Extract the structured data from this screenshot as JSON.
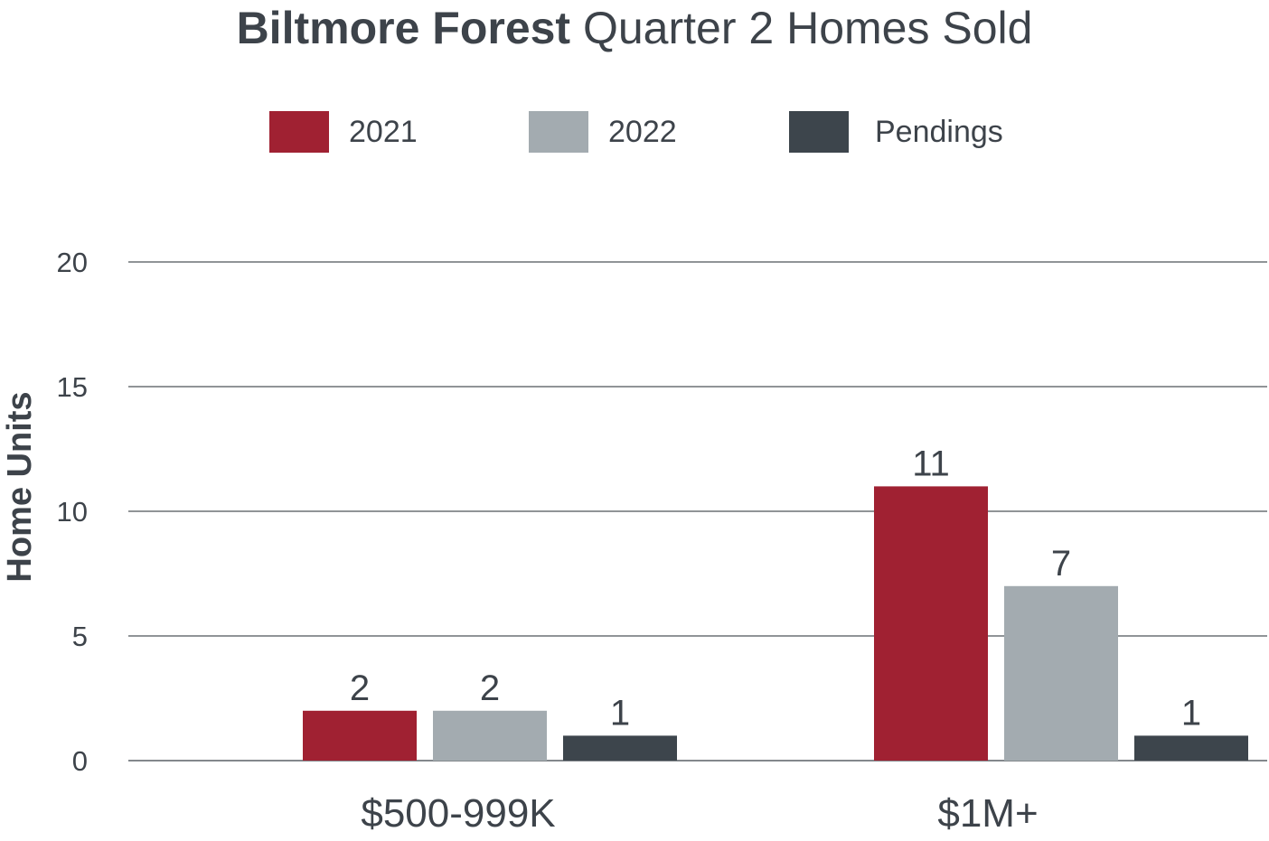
{
  "chart_data": {
    "type": "bar",
    "title_bold": "Biltmore Forest",
    "title_rest": " Quarter 2 Homes Sold",
    "xlabel": "",
    "ylabel": "Home Units",
    "ylim": [
      0,
      20
    ],
    "yticks": [
      "0",
      "5",
      "10",
      "15",
      "20"
    ],
    "categories": [
      "$500-999K",
      "$1M+"
    ],
    "series": [
      {
        "name": "2021",
        "color": "#a02132",
        "values": [
          2,
          11
        ]
      },
      {
        "name": "2022",
        "color": "#a3abb0",
        "values": [
          2,
          7
        ]
      },
      {
        "name": "Pendings",
        "color": "#3d454c",
        "values": [
          1,
          1
        ]
      }
    ],
    "grid": true,
    "legend_position": "top-center"
  }
}
